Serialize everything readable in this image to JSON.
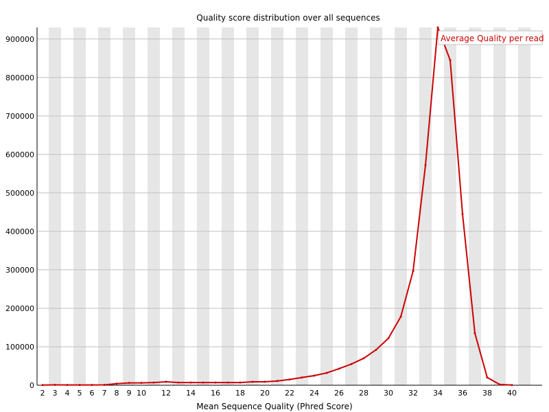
{
  "chart_data": {
    "type": "line",
    "title": "Quality score distribution over all sequences",
    "xlabel": "Mean Sequence Quality (Phred Score)",
    "ylabel": "",
    "x": [
      2,
      3,
      4,
      5,
      6,
      7,
      8,
      9,
      10,
      11,
      12,
      13,
      14,
      15,
      16,
      17,
      18,
      19,
      20,
      21,
      22,
      23,
      24,
      25,
      26,
      27,
      28,
      29,
      30,
      31,
      32,
      33,
      34,
      35,
      36,
      37,
      38,
      39,
      40
    ],
    "series": [
      {
        "name": "Average Quality per read",
        "color": "#cc0000",
        "values": [
          500,
          800,
          600,
          700,
          600,
          800,
          4000,
          6000,
          6000,
          7000,
          9000,
          7000,
          7000,
          7000,
          7000,
          7000,
          7000,
          9000,
          9000,
          11000,
          15000,
          20000,
          25000,
          32000,
          43000,
          55000,
          70000,
          92000,
          122000,
          178000,
          297000,
          572000,
          930000,
          845000,
          445000,
          135000,
          20000,
          2000,
          500
        ]
      }
    ],
    "xlim": [
      2,
      40
    ],
    "ylim": [
      0,
      930000
    ],
    "x_ticks": [
      2,
      3,
      4,
      5,
      6,
      7,
      8,
      9,
      10,
      12,
      14,
      16,
      18,
      20,
      22,
      24,
      26,
      28,
      30,
      32,
      34,
      36,
      38,
      40
    ],
    "y_ticks": [
      0,
      100000,
      200000,
      300000,
      400000,
      500000,
      600000,
      700000,
      800000,
      900000
    ],
    "grid": true,
    "legend_position": "top-right",
    "band_color": "#e6e6e6",
    "grid_color": "#bfbfbf"
  }
}
